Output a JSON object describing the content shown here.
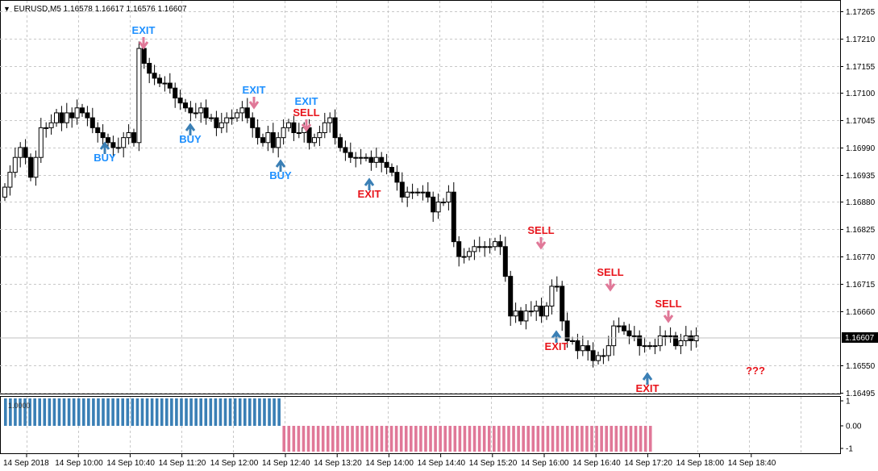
{
  "header": {
    "symbol_line": "EURUSD,M5  1.16578 1.16617 1.16576 1.16607"
  },
  "price_axis": {
    "ticks": [
      "1.17265",
      "1.17210",
      "1.17155",
      "1.17100",
      "1.17045",
      "1.16990",
      "1.16935",
      "1.16880",
      "1.16825",
      "1.16770",
      "1.16715",
      "1.16660",
      "1.16607",
      "1.16550",
      "1.16495"
    ],
    "current_price": "1.16607"
  },
  "indicator_axis": {
    "ticks": [
      "1",
      "0.00",
      "-1"
    ],
    "value_label": "1.0000"
  },
  "time_axis": {
    "labels": [
      "14 Sep 2018",
      "14 Sep 10:00",
      "14 Sep 10:40",
      "14 Sep 11:20",
      "14 Sep 12:00",
      "14 Sep 12:40",
      "14 Sep 13:20",
      "14 Sep 14:00",
      "14 Sep 14:40",
      "14 Sep 15:20",
      "14 Sep 16:00",
      "14 Sep 16:40",
      "14 Sep 17:20",
      "14 Sep 18:00",
      "14 Sep 18:40"
    ]
  },
  "signals": [
    {
      "text": "EXIT",
      "color": "#1e90ff",
      "arrow": "down"
    },
    {
      "text": "BUY",
      "color": "#1e90ff",
      "arrow": "up"
    },
    {
      "text": "BUY",
      "color": "#1e90ff",
      "arrow": "up"
    },
    {
      "text": "EXIT",
      "color": "#1e90ff",
      "arrow": "down"
    },
    {
      "text": "EXIT",
      "color": "#1e90ff",
      "arrow": "none"
    },
    {
      "text": "SELL",
      "color": "#e8141b",
      "arrow": "down"
    },
    {
      "text": "BUY",
      "color": "#1e90ff",
      "arrow": "up"
    },
    {
      "text": "EXIT",
      "color": "#e8141b",
      "arrow": "up"
    },
    {
      "text": "SELL",
      "color": "#e8141b",
      "arrow": "down"
    },
    {
      "text": "EXIT",
      "color": "#e8141b",
      "arrow": "up"
    },
    {
      "text": "SELL",
      "color": "#e8141b",
      "arrow": "down"
    },
    {
      "text": "EXIT",
      "color": "#e8141b",
      "arrow": "up"
    },
    {
      "text": "SELL",
      "color": "#e8141b",
      "arrow": "down"
    },
    {
      "text": "???",
      "color": "#e8141b",
      "arrow": "none"
    }
  ],
  "chart_data": {
    "type": "candlestick",
    "symbol": "EURUSD",
    "timeframe": "M5",
    "ohlc_last": {
      "open": 1.16578,
      "high": 1.16617,
      "low": 1.16576,
      "close": 1.16607
    },
    "ylim": [
      1.16495,
      1.17265
    ],
    "grid": true,
    "closes": [
      1.1691,
      1.1694,
      1.1697,
      1.1699,
      1.1697,
      1.1693,
      1.1697,
      1.1703,
      1.1703,
      1.1704,
      1.1706,
      1.1704,
      1.1706,
      1.1705,
      1.1707,
      1.1706,
      1.1705,
      1.1703,
      1.1702,
      1.1701,
      1.17,
      1.1699,
      1.1699,
      1.1701,
      1.1702,
      1.17,
      1.1719,
      1.1716,
      1.1714,
      1.1713,
      1.1712,
      1.1712,
      1.1711,
      1.1709,
      1.1708,
      1.1707,
      1.1706,
      1.1706,
      1.1707,
      1.1705,
      1.1705,
      1.1703,
      1.1704,
      1.1705,
      1.1705,
      1.1706,
      1.1707,
      1.1705,
      1.1703,
      1.1701,
      1.17,
      1.1702,
      1.1699,
      1.1701,
      1.1703,
      1.1704,
      1.1702,
      1.1702,
      1.1703,
      1.17,
      1.1701,
      1.1702,
      1.1704,
      1.1705,
      1.1701,
      1.1699,
      1.1698,
      1.1697,
      1.1697,
      1.1697,
      1.1697,
      1.1696,
      1.1697,
      1.1696,
      1.1695,
      1.1694,
      1.1692,
      1.1689,
      1.169,
      1.169,
      1.169,
      1.169,
      1.1689,
      1.1686,
      1.1688,
      1.1688,
      1.169,
      1.168,
      1.1677,
      1.1677,
      1.1678,
      1.1679,
      1.1679,
      1.1679,
      1.1679,
      1.168,
      1.1679,
      1.1673,
      1.1665,
      1.1666,
      1.1664,
      1.1666,
      1.1666,
      1.1667,
      1.1665,
      1.1667,
      1.1671,
      1.1671,
      1.1664,
      1.166,
      1.166,
      1.1658,
      1.1659,
      1.1658,
      1.1656,
      1.1657,
      1.1657,
      1.1659,
      1.1663,
      1.1663,
      1.1662,
      1.1661,
      1.1661,
      1.1659,
      1.1659,
      1.1659,
      1.1659,
      1.1661,
      1.1661,
      1.1661,
      1.1659,
      1.166,
      1.1661,
      1.166,
      1.1661
    ],
    "indicator": {
      "series": [
        {
          "value": 1,
          "bars": 57,
          "color": "#3a7fb5"
        },
        {
          "value": -1,
          "bars": 76,
          "color": "#e07898"
        }
      ],
      "ylim": [
        -1,
        1
      ]
    }
  }
}
